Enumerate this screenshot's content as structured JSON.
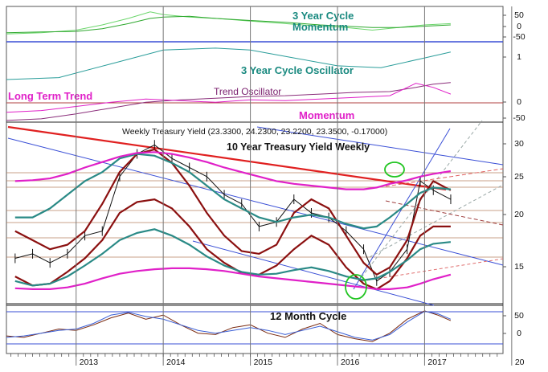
{
  "chart_data": [
    {
      "type": "line",
      "panel": "cycle_momentum",
      "annotations": [
        {
          "text": "3 Year Cycle",
          "color": "#1a8a80"
        },
        {
          "text": "Momentum",
          "color": "#1a8a80"
        }
      ],
      "y_ticks": [
        "50",
        "0",
        "-50"
      ],
      "ylim": [
        -60,
        70
      ],
      "x": [
        2012.2,
        2012.6,
        2013.0,
        2013.3,
        2013.6,
        2013.85,
        2014.0,
        2014.3,
        2014.6,
        2015.0,
        2015.4,
        2015.8,
        2016.1,
        2016.4,
        2016.7,
        2017.0,
        2017.3
      ],
      "series": [
        {
          "color": "#6cd66c",
          "values": [
            -30,
            -25,
            -15,
            5,
            30,
            55,
            45,
            35,
            30,
            20,
            10,
            0,
            -5,
            -15,
            -5,
            5,
            10
          ]
        },
        {
          "color": "#2ea82e",
          "values": [
            -25,
            -22,
            -20,
            -10,
            10,
            30,
            35,
            38,
            30,
            22,
            15,
            5,
            0,
            -5,
            -5,
            0,
            5
          ]
        }
      ]
    },
    {
      "type": "line",
      "panel": "cycle_oscillator",
      "annotations": [
        {
          "text": "3 Year Cycle Oscillator",
          "color": "#1a8a80"
        }
      ],
      "y_ticks": [
        "1"
      ],
      "x": [
        2012.2,
        2012.8,
        2013.4,
        2014.0,
        2014.6,
        2015.0,
        2015.5,
        2016.0,
        2016.5,
        2017.0,
        2017.3
      ],
      "series": [
        {
          "color": "#2a9d9a",
          "values": [
            0.2,
            0.25,
            0.6,
            0.95,
            1.0,
            0.95,
            0.75,
            0.55,
            0.5,
            0.75,
            0.9
          ]
        }
      ]
    },
    {
      "type": "line",
      "panel": "trend_oscillator",
      "annotations": [
        {
          "text": "Long Term Trend",
          "color": "#e020c8"
        },
        {
          "text": "Trend Oscillator",
          "color": "#7a1f6e"
        },
        {
          "text": "Momentum",
          "color": "#e020c8"
        }
      ],
      "y_ticks": [
        "0",
        "-50"
      ],
      "x": [
        2012.2,
        2012.6,
        2013.0,
        2013.4,
        2013.8,
        2014.2,
        2014.6,
        2015.0,
        2015.4,
        2015.8,
        2016.2,
        2016.6,
        2016.9,
        2017.1,
        2017.3
      ],
      "series": [
        {
          "color": "#8a2d7a",
          "values": [
            -20,
            -18,
            -12,
            -5,
            2,
            5,
            7,
            9,
            10,
            12,
            14,
            15,
            20,
            24,
            26
          ]
        },
        {
          "color": "#e020c8",
          "values": [
            -10,
            -8,
            -3,
            2,
            6,
            4,
            2,
            5,
            4,
            6,
            8,
            10,
            25,
            20,
            12
          ]
        }
      ]
    },
    {
      "type": "line",
      "panel": "price",
      "title": "10 Year Treasury Yield Weekly",
      "header": "Weekly Treasury Yield (23.3300, 24.2300, 23.2200, 23.3500, -0.17000)",
      "y_ticks": [
        "30",
        "25",
        "20",
        "15"
      ],
      "ylim": [
        12,
        32
      ],
      "x": [
        2012.3,
        2012.5,
        2012.7,
        2012.9,
        2013.1,
        2013.3,
        2013.5,
        2013.7,
        2013.9,
        2014.1,
        2014.3,
        2014.5,
        2014.7,
        2014.9,
        2015.1,
        2015.3,
        2015.5,
        2015.7,
        2015.9,
        2016.1,
        2016.3,
        2016.45,
        2016.6,
        2016.8,
        2016.95,
        2017.1,
        2017.3
      ],
      "series": [
        {
          "name": "Weekly Treasury Yield",
          "color": "#111111",
          "values": [
            17,
            17.5,
            16.5,
            17.5,
            19.5,
            20,
            26,
            28.5,
            29.5,
            28,
            27,
            26,
            24,
            23,
            20.5,
            21,
            23.5,
            22,
            21.5,
            20,
            18,
            14.5,
            15.5,
            18,
            25.5,
            24.5,
            23.5
          ]
        },
        {
          "color": "#8b1010",
          "values": [
            20,
            19,
            18,
            18.5,
            20,
            23,
            26.5,
            28.5,
            29,
            27.5,
            25,
            22,
            19.5,
            17.8,
            17.5,
            18.5,
            22,
            23.5,
            22.5,
            19.5,
            16.5,
            15.2,
            16,
            19,
            23.5,
            25.5,
            24.5
          ]
        },
        {
          "color": "#8b1010",
          "values": [
            15,
            14,
            14.2,
            15.5,
            17,
            19,
            22,
            23.2,
            23.5,
            22.5,
            20.5,
            18,
            16.5,
            15.4,
            15.2,
            16.2,
            18,
            19.5,
            18.5,
            16,
            14.2,
            13.6,
            14.5,
            17,
            19.5,
            20.5,
            20.5
          ]
        },
        {
          "color": "#2a8a86",
          "values": [
            21.5,
            21.5,
            22.5,
            24,
            25.5,
            26.5,
            28,
            28.5,
            28.3,
            27.5,
            26.5,
            25,
            23.5,
            22.5,
            21.5,
            21,
            21.5,
            21.8,
            21.5,
            20.8,
            20.3,
            20.5,
            21.5,
            23,
            24.2,
            24.8,
            24.6
          ]
        },
        {
          "color": "#2a8a86",
          "values": [
            14.5,
            14,
            14.2,
            15,
            16.2,
            17.5,
            19,
            19.8,
            20.2,
            19.5,
            18.5,
            17.2,
            16.2,
            15.5,
            15.2,
            15.3,
            15.7,
            16,
            15.6,
            15,
            14.6,
            14.8,
            15.5,
            16.8,
            18,
            18.6,
            18.8
          ]
        },
        {
          "color": "#e020c8",
          "values": [
            25.5,
            25.6,
            25.8,
            26.3,
            27,
            27.6,
            28.2,
            28.6,
            28.7,
            28.5,
            28.1,
            27.6,
            27,
            26.5,
            26,
            25.5,
            25.2,
            25,
            24.8,
            24.6,
            24.6,
            24.8,
            25.2,
            25.6,
            26,
            26.3,
            26.6
          ]
        },
        {
          "color": "#e020c8",
          "values": [
            13.7,
            13.6,
            13.6,
            13.8,
            14.2,
            14.8,
            15.3,
            15.6,
            15.8,
            15.9,
            15.9,
            15.8,
            15.6,
            15.3,
            15,
            14.8,
            14.6,
            14.4,
            14.2,
            14,
            13.8,
            13.6,
            13.6,
            13.8,
            14.2,
            14.7,
            15.2
          ]
        }
      ]
    },
    {
      "type": "line",
      "panel": "twelve_month_cycle",
      "annotations": [
        {
          "text": "12  Month Cycle",
          "color": "#111111"
        }
      ],
      "y_ticks": [
        "50",
        "0"
      ],
      "ylim": [
        -60,
        90
      ],
      "x": [
        2012.2,
        2012.4,
        2012.6,
        2012.8,
        2013.0,
        2013.2,
        2013.4,
        2013.6,
        2013.8,
        2014.0,
        2014.2,
        2014.4,
        2014.6,
        2014.8,
        2015.0,
        2015.2,
        2015.4,
        2015.6,
        2015.8,
        2016.0,
        2016.2,
        2016.4,
        2016.6,
        2016.8,
        2017.0,
        2017.15,
        2017.3
      ],
      "series": [
        {
          "color": "#7a2a10",
          "values": [
            -20,
            -25,
            -10,
            5,
            0,
            20,
            45,
            62,
            40,
            55,
            20,
            -10,
            -15,
            10,
            20,
            -10,
            -25,
            5,
            25,
            -15,
            -30,
            -40,
            -10,
            40,
            70,
            55,
            35
          ]
        },
        {
          "color": "#3a5fd6",
          "values": [
            -25,
            -20,
            -10,
            0,
            5,
            25,
            55,
            65,
            50,
            40,
            20,
            0,
            -10,
            0,
            10,
            0,
            -15,
            0,
            15,
            -5,
            -25,
            -35,
            -15,
            30,
            68,
            60,
            40
          ]
        }
      ]
    }
  ],
  "x_axis": {
    "tick_labels": [
      "2013",
      "2014",
      "2015",
      "2016",
      "2017",
      "20"
    ]
  }
}
